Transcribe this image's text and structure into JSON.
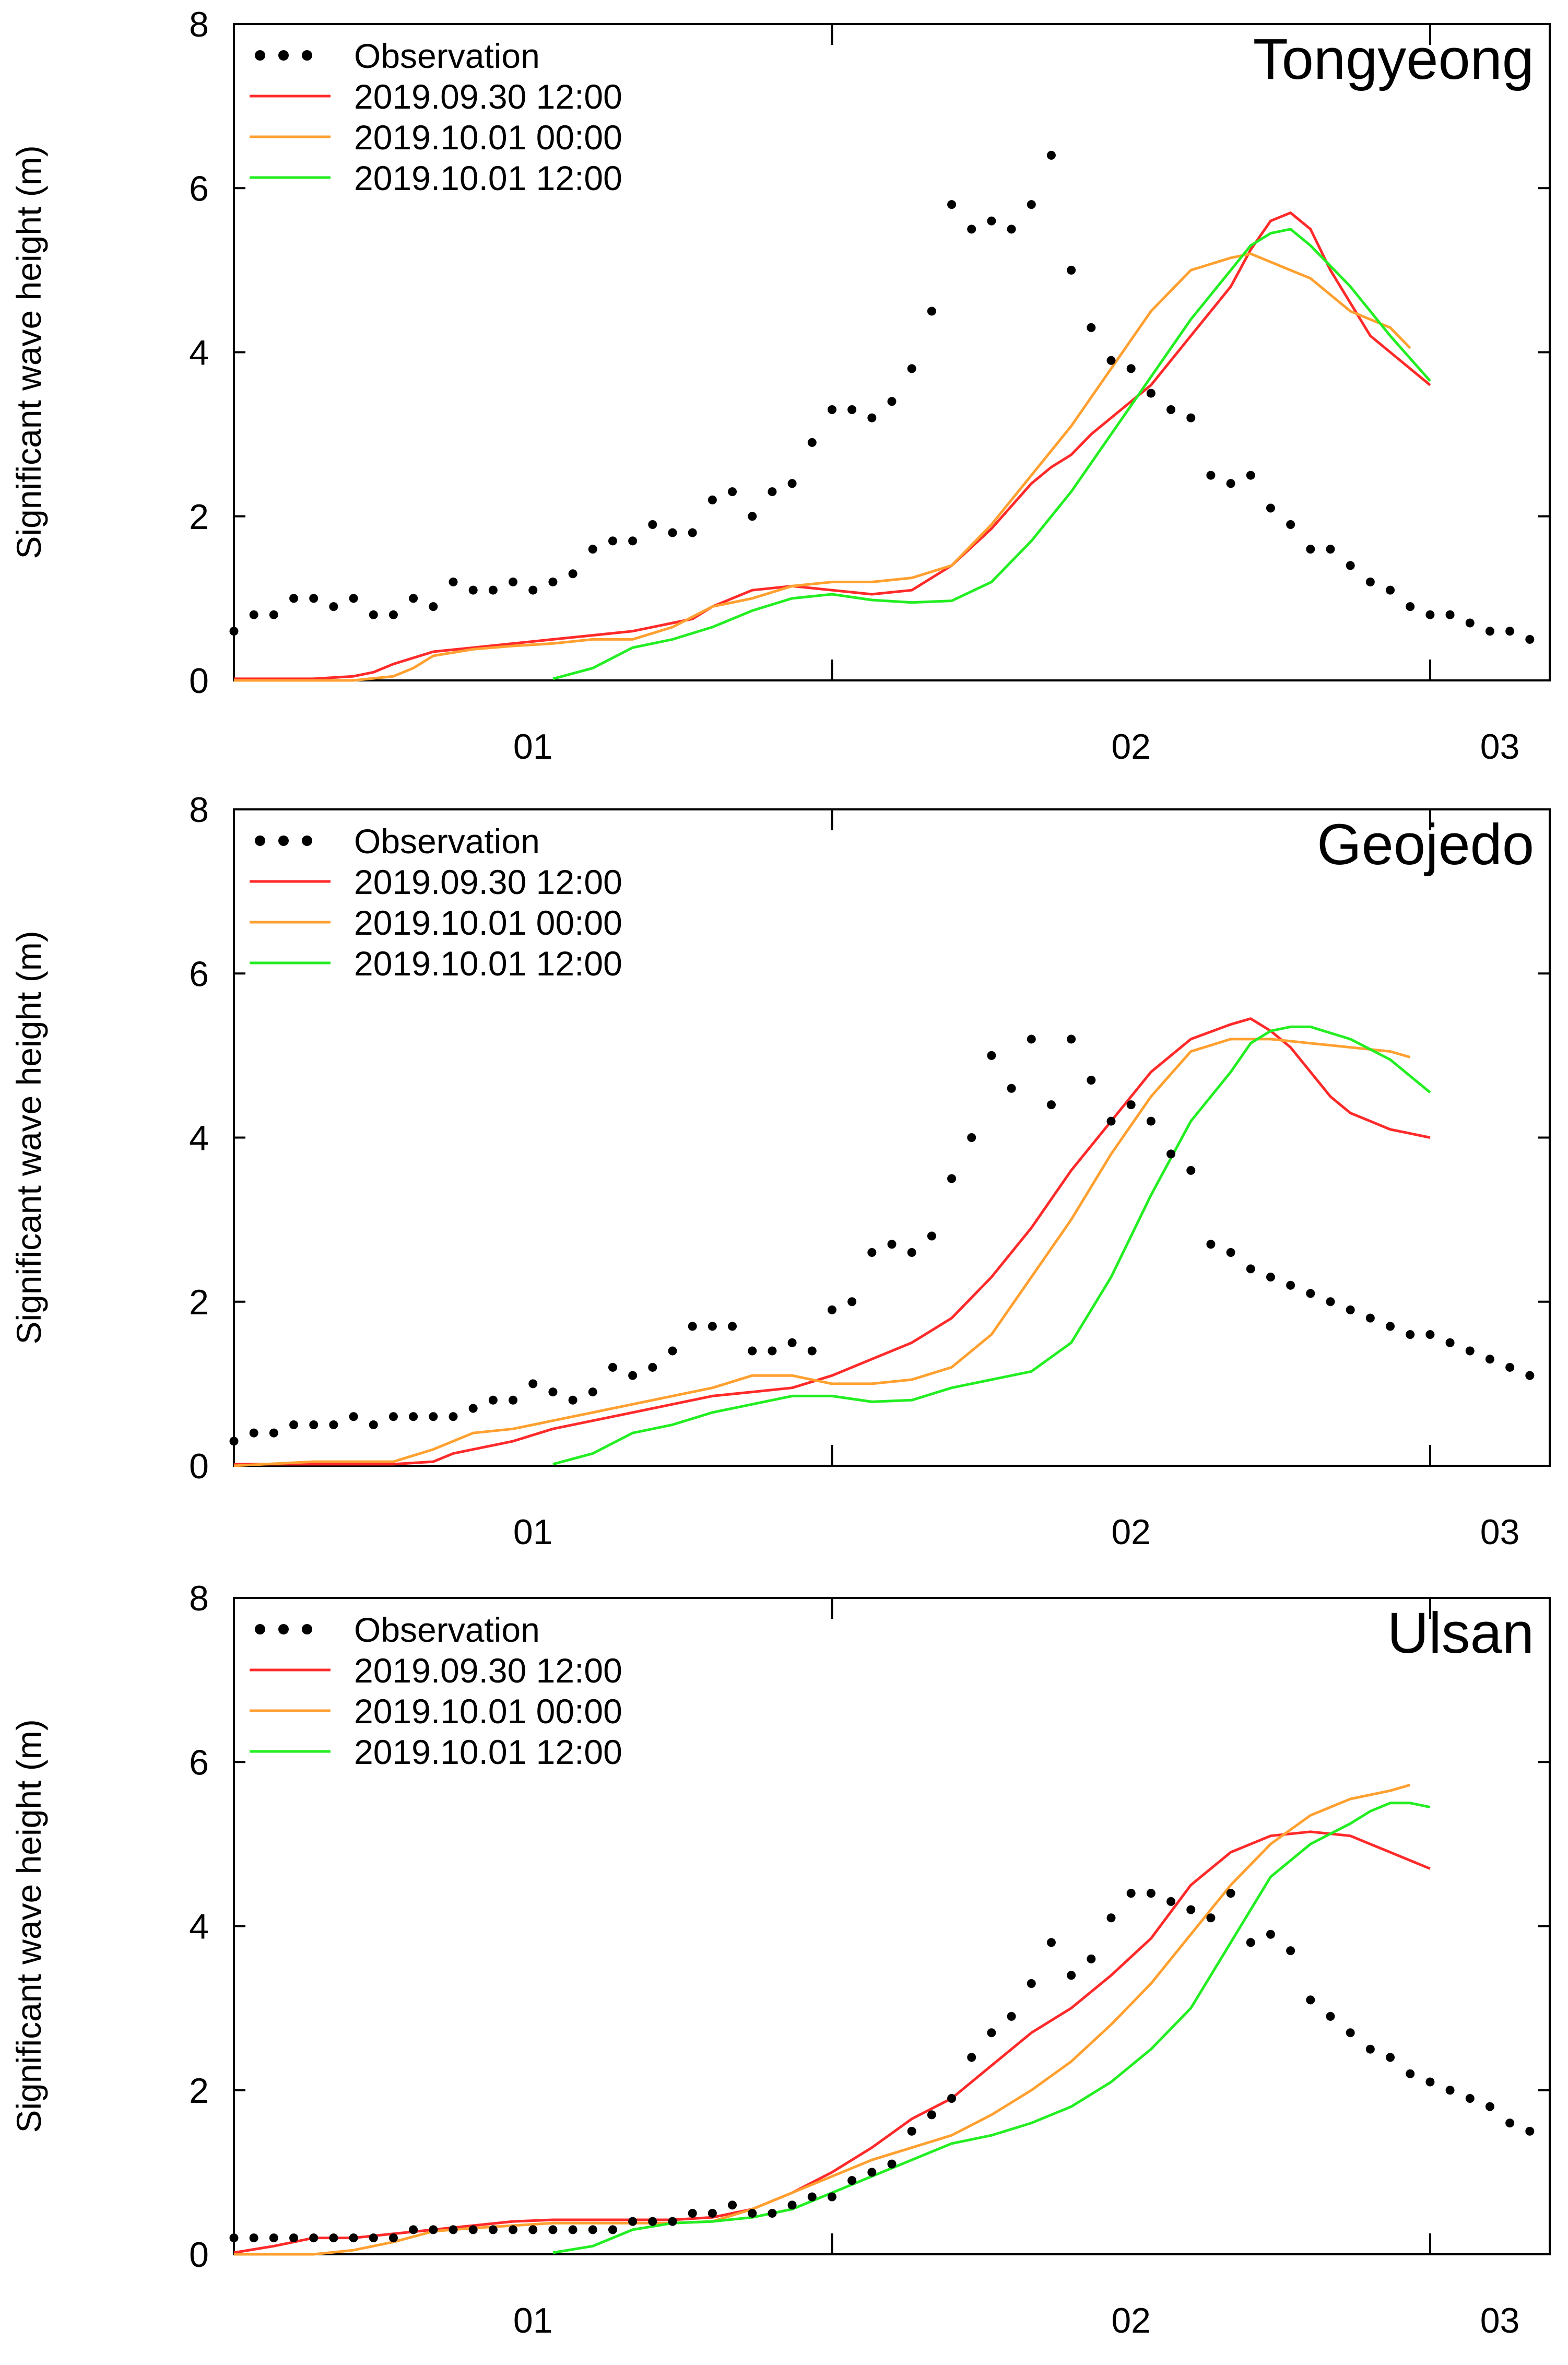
{
  "chart_data": [
    {
      "type": "line",
      "station": "Tongyeong",
      "ylabel": "Significant wave height (m)",
      "xlabel": "",
      "x_unit": "hours",
      "xlim": [
        0,
        66
      ],
      "ylim": [
        0,
        8
      ],
      "yticks": [
        0,
        2,
        4,
        6,
        8
      ],
      "x_major_ticks": [
        0,
        30,
        60
      ],
      "x_tick_labels": [
        {
          "x": 15,
          "label": "01"
        },
        {
          "x": 45,
          "label": "02"
        },
        {
          "x": 63.5,
          "label": "03"
        }
      ],
      "legend": {
        "position": "top-left",
        "entries": [
          "Observation",
          "2019.09.30 12:00",
          "2019.10.01 00:00",
          "2019.10.01 12:00"
        ]
      },
      "observation": {
        "name": "Observation",
        "color": "#000000",
        "x": [
          0,
          1,
          2,
          3,
          4,
          5,
          6,
          7,
          8,
          9,
          10,
          11,
          12,
          13,
          14,
          15,
          16,
          17,
          18,
          19,
          20,
          21,
          22,
          23,
          24,
          25,
          26,
          27,
          28,
          29,
          30,
          31,
          32,
          33,
          34,
          35,
          36,
          37,
          38,
          39,
          40,
          41,
          42,
          43,
          44,
          45,
          46,
          47,
          48,
          49,
          50,
          51,
          52,
          53,
          54,
          55,
          56,
          57,
          58,
          59,
          60,
          61,
          62,
          63,
          64,
          65
        ],
        "y": [
          0.6,
          0.8,
          0.8,
          1.0,
          1.0,
          0.9,
          1.0,
          0.8,
          0.8,
          1.0,
          0.9,
          1.2,
          1.1,
          1.1,
          1.2,
          1.1,
          1.2,
          1.3,
          1.6,
          1.7,
          1.7,
          1.9,
          1.8,
          1.8,
          2.2,
          2.3,
          2.0,
          2.3,
          2.4,
          2.9,
          3.3,
          3.3,
          3.2,
          3.4,
          3.8,
          4.5,
          5.8,
          5.5,
          5.6,
          5.5,
          5.8,
          6.4,
          5.0,
          4.3,
          3.9,
          3.8,
          3.5,
          3.3,
          3.2,
          2.5,
          2.4,
          2.5,
          2.1,
          1.9,
          1.6,
          1.6,
          1.4,
          1.2,
          1.1,
          0.9,
          0.8,
          0.8,
          0.7,
          0.6,
          0.6,
          0.5
        ]
      },
      "series": [
        {
          "name": "2019.09.30 12:00",
          "color": "#ff2a2a",
          "x": [
            0,
            2,
            4,
            6,
            7,
            8,
            10,
            12,
            14,
            16,
            18,
            20,
            22,
            23,
            24,
            26,
            28,
            30,
            32,
            34,
            36,
            38,
            40,
            41,
            42,
            43,
            44,
            46,
            48,
            50,
            51,
            52,
            53,
            54,
            55,
            56,
            57,
            58,
            59,
            60
          ],
          "y": [
            0.02,
            0.02,
            0.02,
            0.05,
            0.1,
            0.2,
            0.35,
            0.4,
            0.45,
            0.5,
            0.55,
            0.6,
            0.7,
            0.75,
            0.9,
            1.1,
            1.15,
            1.1,
            1.05,
            1.1,
            1.4,
            1.85,
            2.4,
            2.6,
            2.75,
            3.0,
            3.2,
            3.6,
            4.2,
            4.8,
            5.25,
            5.6,
            5.7,
            5.5,
            5.0,
            4.6,
            4.2,
            4.0,
            3.8,
            3.6
          ]
        },
        {
          "name": "2019.10.01 00:00",
          "color": "#ffa030",
          "x": [
            0,
            4,
            6,
            8,
            9,
            10,
            12,
            14,
            16,
            18,
            20,
            22,
            24,
            26,
            28,
            30,
            32,
            34,
            36,
            38,
            40,
            42,
            44,
            46,
            48,
            50,
            51,
            52,
            53,
            54,
            56,
            58,
            59
          ],
          "y": [
            0.0,
            0.0,
            0.0,
            0.05,
            0.15,
            0.3,
            0.38,
            0.42,
            0.45,
            0.5,
            0.5,
            0.65,
            0.9,
            1.0,
            1.15,
            1.2,
            1.2,
            1.25,
            1.4,
            1.9,
            2.5,
            3.1,
            3.8,
            4.5,
            5.0,
            5.15,
            5.2,
            5.1,
            5.0,
            4.9,
            4.5,
            4.3,
            4.05
          ]
        },
        {
          "name": "2019.10.01 12:00",
          "color": "#22ee22",
          "x": [
            16,
            18,
            20,
            22,
            24,
            26,
            28,
            30,
            32,
            34,
            36,
            38,
            40,
            42,
            44,
            46,
            48,
            50,
            51,
            52,
            53,
            54,
            56,
            58,
            60
          ],
          "y": [
            0.02,
            0.15,
            0.4,
            0.5,
            0.65,
            0.85,
            1.0,
            1.05,
            0.98,
            0.95,
            0.97,
            1.2,
            1.7,
            2.3,
            3.0,
            3.7,
            4.4,
            5.0,
            5.3,
            5.45,
            5.5,
            5.3,
            4.8,
            4.2,
            3.65
          ]
        }
      ]
    },
    {
      "type": "line",
      "station": "Geojedo",
      "ylabel": "Significant wave height (m)",
      "xlabel": "",
      "x_unit": "hours",
      "xlim": [
        0,
        66
      ],
      "ylim": [
        0,
        8
      ],
      "yticks": [
        0,
        2,
        4,
        6,
        8
      ],
      "x_major_ticks": [
        0,
        30,
        60
      ],
      "x_tick_labels": [
        {
          "x": 15,
          "label": "01"
        },
        {
          "x": 45,
          "label": "02"
        },
        {
          "x": 63.5,
          "label": "03"
        }
      ],
      "legend": {
        "position": "top-left",
        "entries": [
          "Observation",
          "2019.09.30 12:00",
          "2019.10.01 00:00",
          "2019.10.01 12:00"
        ]
      },
      "observation": {
        "name": "Observation",
        "color": "#000000",
        "x": [
          0,
          1,
          2,
          3,
          4,
          5,
          6,
          7,
          8,
          9,
          10,
          11,
          12,
          13,
          14,
          15,
          16,
          17,
          18,
          19,
          20,
          21,
          22,
          23,
          24,
          25,
          26,
          27,
          28,
          29,
          30,
          31,
          32,
          33,
          34,
          35,
          36,
          37,
          38,
          39,
          40,
          41,
          42,
          43,
          44,
          45,
          46,
          47,
          48,
          49,
          50,
          51,
          52,
          53,
          54,
          55,
          56,
          57,
          58,
          59,
          60,
          61,
          62,
          63,
          64,
          65
        ],
        "y": [
          0.3,
          0.4,
          0.4,
          0.5,
          0.5,
          0.5,
          0.6,
          0.5,
          0.6,
          0.6,
          0.6,
          0.6,
          0.7,
          0.8,
          0.8,
          1.0,
          0.9,
          0.8,
          0.9,
          1.2,
          1.1,
          1.2,
          1.4,
          1.7,
          1.7,
          1.7,
          1.4,
          1.4,
          1.5,
          1.4,
          1.9,
          2.0,
          2.6,
          2.7,
          2.6,
          2.8,
          3.5,
          4.0,
          5.0,
          4.6,
          5.2,
          4.4,
          5.2,
          4.7,
          4.2,
          4.4,
          4.2,
          3.8,
          3.6,
          2.7,
          2.6,
          2.4,
          2.3,
          2.2,
          2.1,
          2.0,
          1.9,
          1.8,
          1.7,
          1.6,
          1.6,
          1.5,
          1.4,
          1.3,
          1.2,
          1.1
        ]
      },
      "series": [
        {
          "name": "2019.09.30 12:00",
          "color": "#ff2a2a",
          "x": [
            0,
            4,
            8,
            10,
            11,
            12,
            14,
            16,
            18,
            20,
            22,
            24,
            26,
            28,
            30,
            32,
            34,
            36,
            38,
            40,
            42,
            44,
            46,
            48,
            50,
            51,
            52,
            53,
            54,
            55,
            56,
            57,
            58,
            59,
            60
          ],
          "y": [
            0.02,
            0.02,
            0.02,
            0.05,
            0.15,
            0.2,
            0.3,
            0.45,
            0.55,
            0.65,
            0.75,
            0.85,
            0.9,
            0.95,
            1.1,
            1.3,
            1.5,
            1.8,
            2.3,
            2.9,
            3.6,
            4.2,
            4.8,
            5.2,
            5.38,
            5.45,
            5.3,
            5.1,
            4.8,
            4.5,
            4.3,
            4.2,
            4.1,
            4.05,
            4.0
          ]
        },
        {
          "name": "2019.10.01 00:00",
          "color": "#ffa030",
          "x": [
            0,
            4,
            8,
            10,
            12,
            14,
            16,
            18,
            20,
            22,
            24,
            26,
            28,
            30,
            32,
            34,
            36,
            38,
            40,
            42,
            44,
            46,
            48,
            50,
            52,
            54,
            56,
            58,
            59
          ],
          "y": [
            0.0,
            0.05,
            0.05,
            0.2,
            0.4,
            0.45,
            0.55,
            0.65,
            0.75,
            0.85,
            0.95,
            1.1,
            1.1,
            1.0,
            1.0,
            1.05,
            1.2,
            1.6,
            2.3,
            3.0,
            3.8,
            4.5,
            5.05,
            5.2,
            5.2,
            5.15,
            5.1,
            5.05,
            4.98
          ]
        },
        {
          "name": "2019.10.01 12:00",
          "color": "#22ee22",
          "x": [
            16,
            18,
            20,
            22,
            24,
            26,
            28,
            30,
            32,
            34,
            36,
            38,
            40,
            42,
            44,
            46,
            48,
            50,
            51,
            52,
            53,
            54,
            56,
            58,
            60
          ],
          "y": [
            0.02,
            0.15,
            0.4,
            0.5,
            0.65,
            0.75,
            0.85,
            0.85,
            0.78,
            0.8,
            0.95,
            1.05,
            1.15,
            1.5,
            2.3,
            3.3,
            4.2,
            4.8,
            5.15,
            5.3,
            5.35,
            5.35,
            5.2,
            4.95,
            4.55
          ]
        }
      ]
    },
    {
      "type": "line",
      "station": "Ulsan",
      "ylabel": "Significant wave height (m)",
      "xlabel": "",
      "x_unit": "hours",
      "xlim": [
        0,
        66
      ],
      "ylim": [
        0,
        8
      ],
      "yticks": [
        0,
        2,
        4,
        6,
        8
      ],
      "x_major_ticks": [
        0,
        30,
        60
      ],
      "x_tick_labels": [
        {
          "x": 15,
          "label": "01"
        },
        {
          "x": 45,
          "label": "02"
        },
        {
          "x": 63.5,
          "label": "03"
        }
      ],
      "legend": {
        "position": "top-left",
        "entries": [
          "Observation",
          "2019.09.30 12:00",
          "2019.10.01 00:00",
          "2019.10.01 12:00"
        ]
      },
      "observation": {
        "name": "Observation",
        "color": "#000000",
        "x": [
          0,
          1,
          2,
          3,
          4,
          5,
          6,
          7,
          8,
          9,
          10,
          11,
          12,
          13,
          14,
          15,
          16,
          17,
          18,
          19,
          20,
          21,
          22,
          23,
          24,
          25,
          26,
          27,
          28,
          29,
          30,
          31,
          32,
          33,
          34,
          35,
          36,
          37,
          38,
          39,
          40,
          41,
          42,
          43,
          44,
          45,
          46,
          47,
          48,
          49,
          50,
          51,
          52,
          53,
          54,
          55,
          56,
          57,
          58,
          59,
          60,
          61,
          62,
          63,
          64,
          65
        ],
        "y": [
          0.2,
          0.2,
          0.2,
          0.2,
          0.2,
          0.2,
          0.2,
          0.2,
          0.2,
          0.3,
          0.3,
          0.3,
          0.3,
          0.3,
          0.3,
          0.3,
          0.3,
          0.3,
          0.3,
          0.3,
          0.4,
          0.4,
          0.4,
          0.5,
          0.5,
          0.6,
          0.5,
          0.5,
          0.6,
          0.7,
          0.7,
          0.9,
          1.0,
          1.1,
          1.5,
          1.7,
          1.9,
          2.4,
          2.7,
          2.9,
          3.3,
          3.8,
          3.4,
          3.6,
          4.1,
          4.4,
          4.4,
          4.3,
          4.2,
          4.1,
          4.4,
          3.8,
          3.9,
          3.7,
          3.1,
          2.9,
          2.7,
          2.5,
          2.4,
          2.2,
          2.1,
          2.0,
          1.9,
          1.8,
          1.6,
          1.5
        ]
      },
      "series": [
        {
          "name": "2019.09.30 12:00",
          "color": "#ff2a2a",
          "x": [
            0,
            2,
            4,
            6,
            8,
            10,
            12,
            14,
            16,
            18,
            20,
            22,
            24,
            26,
            28,
            30,
            32,
            34,
            36,
            38,
            40,
            42,
            44,
            46,
            48,
            50,
            52,
            54,
            56,
            57,
            58,
            59,
            60
          ],
          "y": [
            0.02,
            0.1,
            0.2,
            0.2,
            0.25,
            0.3,
            0.35,
            0.4,
            0.42,
            0.42,
            0.42,
            0.42,
            0.45,
            0.55,
            0.75,
            1.0,
            1.3,
            1.65,
            1.9,
            2.3,
            2.7,
            3.0,
            3.4,
            3.85,
            4.5,
            4.9,
            5.1,
            5.15,
            5.1,
            5.0,
            4.9,
            4.8,
            4.7
          ]
        },
        {
          "name": "2019.10.01 00:00",
          "color": "#ffa030",
          "x": [
            0,
            4,
            6,
            8,
            10,
            12,
            14,
            16,
            18,
            20,
            22,
            24,
            26,
            28,
            30,
            32,
            34,
            36,
            38,
            40,
            42,
            44,
            46,
            48,
            50,
            52,
            54,
            56,
            58,
            59
          ],
          "y": [
            0.0,
            0.0,
            0.05,
            0.15,
            0.28,
            0.32,
            0.35,
            0.38,
            0.38,
            0.38,
            0.38,
            0.4,
            0.55,
            0.75,
            0.95,
            1.15,
            1.3,
            1.45,
            1.7,
            2.0,
            2.35,
            2.8,
            3.3,
            3.9,
            4.5,
            5.0,
            5.35,
            5.55,
            5.65,
            5.72
          ]
        },
        {
          "name": "2019.10.01 12:00",
          "color": "#22ee22",
          "x": [
            16,
            18,
            20,
            22,
            24,
            26,
            28,
            30,
            32,
            34,
            36,
            38,
            40,
            42,
            44,
            46,
            48,
            50,
            52,
            54,
            56,
            57,
            58,
            59,
            60
          ],
          "y": [
            0.02,
            0.1,
            0.3,
            0.38,
            0.4,
            0.45,
            0.55,
            0.75,
            0.95,
            1.15,
            1.35,
            1.45,
            1.6,
            1.8,
            2.1,
            2.5,
            3.0,
            3.8,
            4.6,
            5.0,
            5.25,
            5.4,
            5.5,
            5.5,
            5.45
          ]
        }
      ]
    }
  ]
}
